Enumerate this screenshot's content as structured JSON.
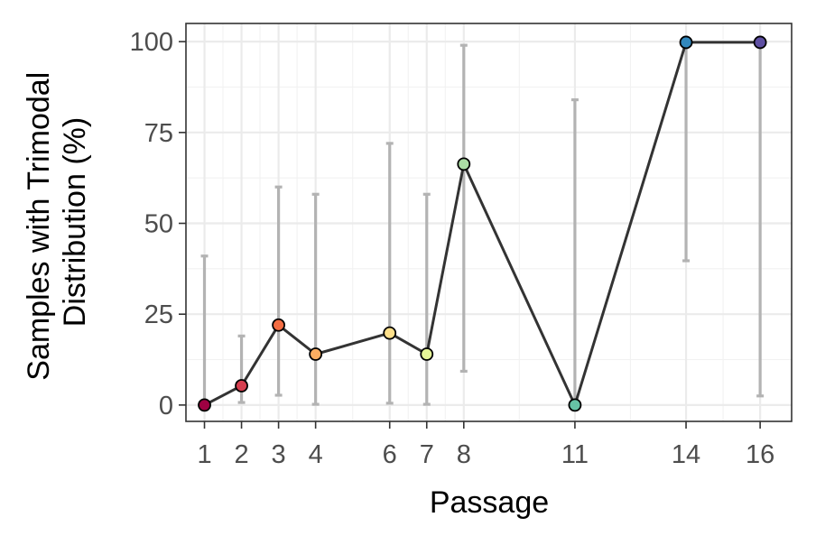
{
  "chart_data": {
    "type": "line",
    "xlabel": "Passage",
    "ylabel_lines": [
      "Samples with Trimodal",
      "Distribution (%)"
    ],
    "x_ticks": [
      1,
      2,
      3,
      4,
      6,
      7,
      8,
      11,
      14,
      16
    ],
    "x_tick_labels": [
      "1",
      "2",
      "3",
      "4",
      "6",
      "7",
      "8",
      "11",
      "14",
      "16"
    ],
    "y_ticks": [
      0,
      25,
      50,
      75,
      100
    ],
    "y_tick_labels": [
      "0",
      "25",
      "50",
      "75",
      "100"
    ],
    "xlim": [
      0.5,
      16.85
    ],
    "ylim": [
      -4.5,
      105
    ],
    "grid": true,
    "line_color": "#333333",
    "errorbar_color": "#b3b3b3",
    "points": [
      {
        "x": 1,
        "y": 0,
        "low": 0,
        "high": 41,
        "color": "#9e0142"
      },
      {
        "x": 2,
        "y": 5.3,
        "low": 0.7,
        "high": 19,
        "color": "#d53e4f"
      },
      {
        "x": 3,
        "y": 22,
        "low": 2.7,
        "high": 60,
        "color": "#f46d43"
      },
      {
        "x": 4,
        "y": 14,
        "low": 0.2,
        "high": 58,
        "color": "#fdae61"
      },
      {
        "x": 6,
        "y": 19.8,
        "low": 0.5,
        "high": 72,
        "color": "#fee08b"
      },
      {
        "x": 7,
        "y": 14,
        "low": 0.2,
        "high": 58,
        "color": "#e6f598"
      },
      {
        "x": 8,
        "y": 66.3,
        "low": 9.3,
        "high": 99,
        "color": "#abdda4"
      },
      {
        "x": 11,
        "y": 0,
        "low": 0,
        "high": 84,
        "color": "#66c2a5"
      },
      {
        "x": 14,
        "y": 99.8,
        "low": 39.7,
        "high": 100,
        "color": "#3288bd"
      },
      {
        "x": 16,
        "y": 99.8,
        "low": 2.5,
        "high": 100,
        "color": "#5e4fa2"
      }
    ]
  }
}
